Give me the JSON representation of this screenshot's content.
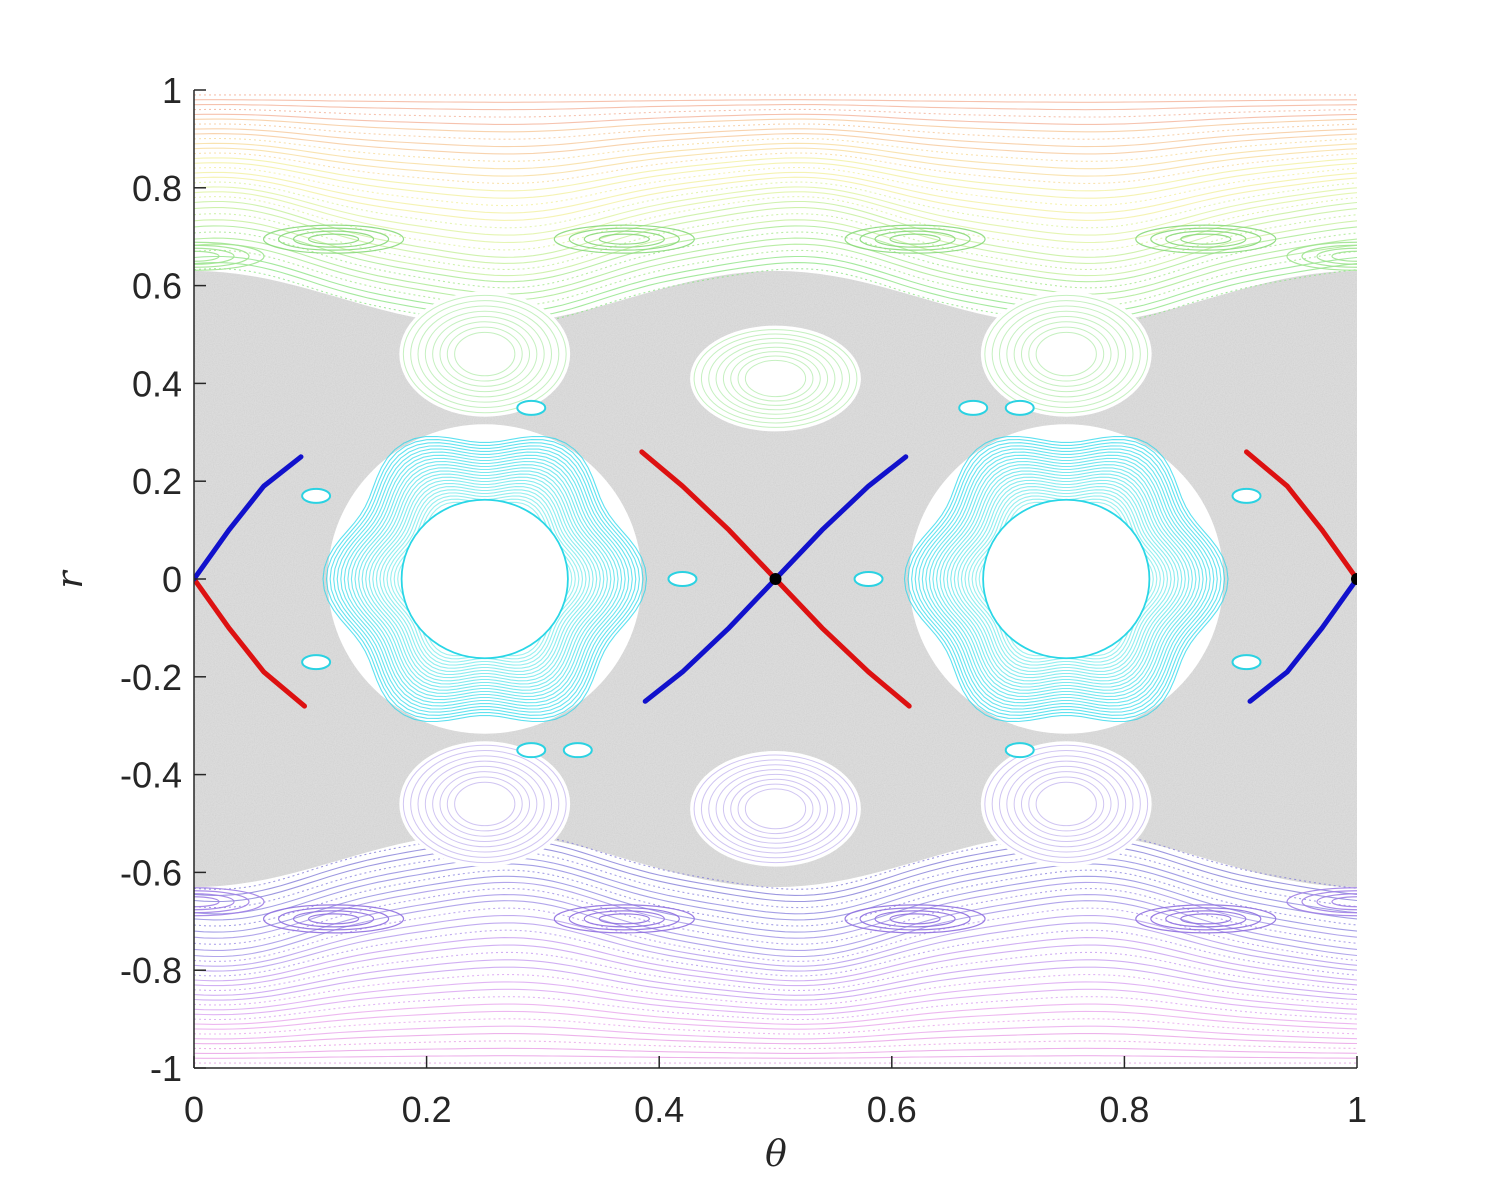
{
  "chart_data": {
    "type": "scatter",
    "title": "",
    "xlabel": "θ",
    "ylabel": "r",
    "xlim": [
      0,
      1
    ],
    "ylim": [
      -1,
      1
    ],
    "xticks": [
      0,
      0.2,
      0.4,
      0.6,
      0.8,
      1
    ],
    "xtick_labels": [
      "0",
      "0.2",
      "0.4",
      "0.6",
      "0.8",
      "1"
    ],
    "yticks": [
      -1,
      -0.8,
      -0.6,
      -0.4,
      -0.2,
      0,
      0.2,
      0.4,
      0.6,
      0.8,
      1
    ],
    "ytick_labels": [
      "-1",
      "-0.8",
      "-0.6",
      "-0.4",
      "-0.2",
      "0",
      "0.2",
      "0.4",
      "0.6",
      "0.8",
      "1"
    ],
    "grid": false,
    "background_style": "Poincaré-section orbits: gray chaotic sea for |r| < 0.6, cyan elliptic islands around (0.25, 0) and (0.75, 0), green and yellow invariant curves near r > 0.6, purple and magenta near r < -0.6",
    "colors": {
      "chaos": "#dcdcdc",
      "island_core": "#29d6e6",
      "unstable_manifold": "#dd1111",
      "stable_manifold": "#1111cc",
      "fixed_point": "#000000",
      "axis": "#262626"
    },
    "elliptic_islands": [
      {
        "center": [
          0.25,
          0.0
        ],
        "rx": 0.13,
        "ry": 0.3
      },
      {
        "center": [
          0.75,
          0.0
        ],
        "rx": 0.13,
        "ry": 0.3
      }
    ],
    "secondary_islands": [
      {
        "center": [
          0.25,
          0.46
        ],
        "rx": 0.07,
        "ry": 0.12
      },
      {
        "center": [
          0.75,
          0.46
        ],
        "rx": 0.07,
        "ry": 0.12
      },
      {
        "center": [
          0.5,
          0.41
        ],
        "rx": 0.07,
        "ry": 0.1
      },
      {
        "center": [
          0.25,
          -0.46
        ],
        "rx": 0.07,
        "ry": 0.12
      },
      {
        "center": [
          0.75,
          -0.46
        ],
        "rx": 0.07,
        "ry": 0.12
      },
      {
        "center": [
          0.5,
          -0.47
        ],
        "rx": 0.07,
        "ry": 0.11
      }
    ],
    "series": [
      {
        "color": "#dd1111",
        "segments": [
          {
            "x": [
              0.0,
              0.03,
              0.06,
              0.095
            ],
            "y": [
              0.0,
              -0.1,
              -0.19,
              -0.26
            ]
          },
          {
            "x": [
              0.385,
              0.42,
              0.46,
              0.5,
              0.54,
              0.58,
              0.615
            ],
            "y": [
              0.26,
              0.19,
              0.1,
              0.0,
              -0.1,
              -0.19,
              -0.26
            ]
          },
          {
            "x": [
              0.905,
              0.94,
              0.97,
              1.0
            ],
            "y": [
              0.26,
              0.19,
              0.1,
              0.0
            ]
          }
        ]
      },
      {
        "color": "#1111cc",
        "segments": [
          {
            "x": [
              0.0,
              0.03,
              0.06,
              0.092
            ],
            "y": [
              0.0,
              0.1,
              0.19,
              0.25
            ]
          },
          {
            "x": [
              0.388,
              0.42,
              0.46,
              0.5,
              0.54,
              0.58,
              0.612
            ],
            "y": [
              -0.25,
              -0.19,
              -0.1,
              0.0,
              0.1,
              0.19,
              0.25
            ]
          },
          {
            "x": [
              0.908,
              0.94,
              0.97,
              1.0
            ],
            "y": [
              -0.25,
              -0.19,
              -0.1,
              0.0
            ]
          }
        ]
      }
    ],
    "fixed_points": [
      {
        "x": 0.5,
        "y": 0.0
      },
      {
        "x": 1.0,
        "y": 0.0
      }
    ]
  }
}
